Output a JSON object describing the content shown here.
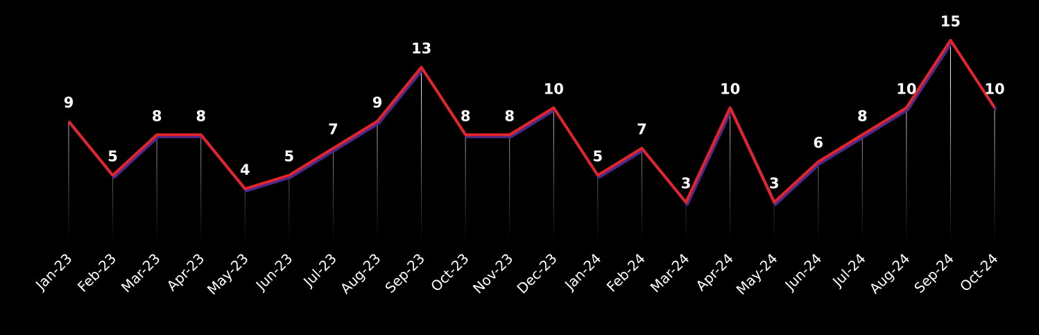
{
  "chart_data": {
    "type": "line",
    "categories": [
      "Jan-23",
      "Feb-23",
      "Mar-23",
      "Apr-23",
      "May-23",
      "Jun-23",
      "Jul-23",
      "Aug-23",
      "Sep-23",
      "Oct-23",
      "Nov-23",
      "Dec-23",
      "Jan-24",
      "Feb-24",
      "Mar-24",
      "Apr-24",
      "May-24",
      "Jun-24",
      "Jul-24",
      "Aug-24",
      "Sep-24",
      "Oct-24"
    ],
    "values": [
      9,
      5,
      8,
      8,
      4,
      5,
      7,
      9,
      13,
      8,
      8,
      10,
      5,
      7,
      3,
      10,
      3,
      6,
      8,
      10,
      15,
      10
    ],
    "color": "#e3242b",
    "ylim": [
      0,
      15
    ]
  }
}
